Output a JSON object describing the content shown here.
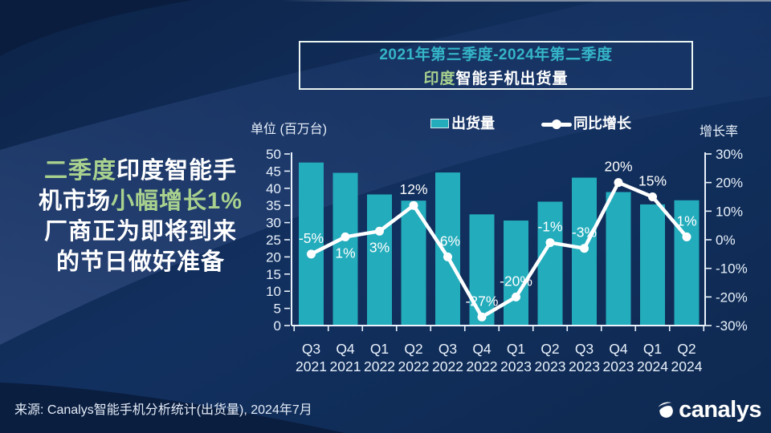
{
  "headline": {
    "l1a": "二季度",
    "l1b": "印度智能手",
    "l2a": "机市场",
    "l2b": "小幅增长1%",
    "l3": "厂商正为即将到来",
    "l4": "的节日做好准备"
  },
  "title_box": {
    "line1": "2021年第三季度-2024年第二季度",
    "line2_green": "印度",
    "line2_white": "智能手机出货量"
  },
  "source": {
    "text": "来源: Canalys智能手机分析统计(出货量), 2024年7月"
  },
  "logo": {
    "text": "canalys"
  },
  "chart_data": {
    "type": "bar+line combo",
    "title": "印度智能手机出货量",
    "subtitle": "2021年第三季度-2024年第二季度",
    "unit_label": "单位 (百万台)",
    "growth_axis_label": "增长率",
    "categories": [
      "Q3 2021",
      "Q4 2021",
      "Q1 2022",
      "Q2 2022",
      "Q3 2022",
      "Q4 2022",
      "Q1 2023",
      "Q2 2023",
      "Q3 2023",
      "Q4 2023",
      "Q1 2024",
      "Q2 2024"
    ],
    "series": [
      {
        "name": "出货量",
        "type": "bar",
        "unit": "百万台",
        "values": [
          47.5,
          44.5,
          38.2,
          36.4,
          44.6,
          32.4,
          30.6,
          36.1,
          43.1,
          38.9,
          35.3,
          36.5
        ]
      },
      {
        "name": "同比增长",
        "type": "line",
        "values": [
          -5,
          1,
          3,
          12,
          -6,
          -27,
          -20,
          -1,
          -3,
          20,
          15,
          1
        ],
        "labels": [
          "-5%",
          "1%",
          "3%",
          "12%",
          "-6%",
          "-27%",
          "-20%",
          "-1%",
          "-3%",
          "20%",
          "15%",
          "1%"
        ],
        "label_side": [
          "above",
          "below",
          "below",
          "above",
          "above",
          "above",
          "above",
          "above",
          "above",
          "above",
          "above",
          "above"
        ]
      }
    ],
    "left_axis": {
      "min": 0,
      "max": 50,
      "step": 5,
      "ticks": [
        0,
        5,
        10,
        15,
        20,
        25,
        30,
        35,
        40,
        45,
        50
      ]
    },
    "right_axis": {
      "min": -30,
      "max": 30,
      "step": 10,
      "ticks": [
        "30%",
        "20%",
        "10%",
        "0%",
        "-10%",
        "-20%",
        "-30%"
      ]
    },
    "legend": [
      {
        "label": "出货量",
        "marker": "bar"
      },
      {
        "label": "同比增长",
        "marker": "line"
      }
    ],
    "grid": false,
    "legend_position": "top",
    "colors": {
      "bar": "#23acbc",
      "line": "#ffffff",
      "title_accent": "#35b5c8",
      "green_accent": "#a9d18e",
      "axis": "#e9f1fb"
    }
  }
}
